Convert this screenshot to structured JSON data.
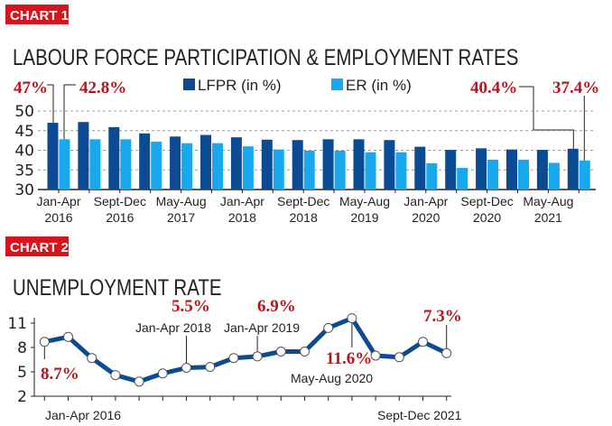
{
  "colors": {
    "lfpr": "#0b4b93",
    "er": "#17a8ee",
    "badge": "#d7141e",
    "annotation": "#b8141c",
    "line": "#0b4b93"
  },
  "chart_data": [
    {
      "type": "bar",
      "badge": "CHART 1",
      "title": "LABOUR FORCE PARTICIPATION & EMPLOYMENT RATES",
      "ylim": [
        30,
        50
      ],
      "yticks": [
        "30",
        "35",
        "40",
        "45",
        "50"
      ],
      "grid": true,
      "legend_position": "top",
      "xtick_labels": [
        [
          "Jan-Apr",
          "2016"
        ],
        [
          "Sept-Dec",
          "2016"
        ],
        [
          "May-Aug",
          "2017"
        ],
        [
          "Jan-Apr",
          "2018"
        ],
        [
          "Sept-Dec",
          "2018"
        ],
        [
          "May-Aug",
          "2019"
        ],
        [
          "Jan-Apr",
          "2020"
        ],
        [
          "Sept-Dec",
          "2020"
        ],
        [
          "May-Aug",
          "2021"
        ]
      ],
      "series": [
        {
          "name": "LFPR (in %)",
          "values": [
            47,
            47.2,
            45.9,
            44.3,
            43.5,
            43.9,
            43.3,
            42.7,
            42.6,
            42.8,
            42.8,
            42.6,
            40.9,
            40.1,
            40.5,
            40.2,
            40.1,
            40.4
          ]
        },
        {
          "name": "ER (in %)",
          "values": [
            42.8,
            42.8,
            42.8,
            42.2,
            41.8,
            41.8,
            41.0,
            40.2,
            39.9,
            39.9,
            39.5,
            39.5,
            36.7,
            35.5,
            37.6,
            37.6,
            36.8,
            37.4
          ]
        }
      ],
      "annotations": [
        "47%",
        "42.8%",
        "40.4%",
        "37.4%"
      ]
    },
    {
      "type": "line",
      "badge": "CHART 2",
      "title": "UNEMPLOYMENT RATE",
      "ylim": [
        2,
        11
      ],
      "yticks": [
        "2",
        "5",
        "8",
        "11"
      ],
      "grid": false,
      "values": [
        8.7,
        9.3,
        6.7,
        4.6,
        3.8,
        4.8,
        5.5,
        5.6,
        6.7,
        6.9,
        7.5,
        7.5,
        10.4,
        11.6,
        7.0,
        6.8,
        8.7,
        7.3
      ],
      "xtick_labels": {
        "first": "Jan-Apr 2016",
        "last": "Sept-Dec 2021"
      },
      "annotations": {
        "first_value": "8.7%",
        "jan2018_label": "Jan-Apr 2018",
        "jan2018_value": "5.5%",
        "jan2019_label": "Jan-Apr 2019",
        "jan2019_value": "6.9%",
        "may2020_label": "May-Aug 2020",
        "may2020_value": "11.6%",
        "last_value": "7.3%"
      }
    }
  ]
}
